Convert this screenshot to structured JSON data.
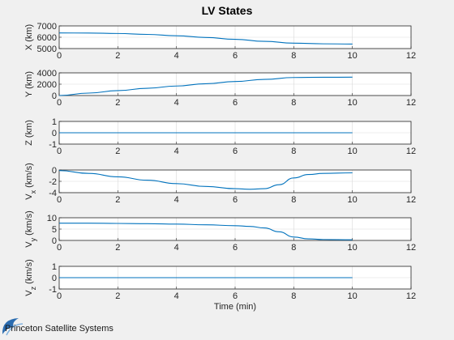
{
  "figure": {
    "title": "LV States",
    "footer": "Princeton Satellite Systems",
    "line_color": "#0072bd",
    "grid_color": "#d9d9d9",
    "background": "#f0f0f0",
    "axes_bg": "#ffffff"
  },
  "chart_data": [
    {
      "type": "line",
      "ylabel": "X (km)",
      "xlim": [
        0,
        12
      ],
      "ylim": [
        5000,
        7000
      ],
      "xticks": [
        "0",
        "2",
        "4",
        "6",
        "8",
        "10",
        "12"
      ],
      "yticks": [
        "5000",
        "6000",
        "7000"
      ],
      "xlabel": "",
      "grid": true,
      "series": [
        {
          "x": [
            0,
            1,
            2,
            3,
            4,
            5,
            6,
            7,
            8,
            9,
            10
          ],
          "y": [
            6380,
            6370,
            6330,
            6250,
            6130,
            5980,
            5820,
            5640,
            5480,
            5420,
            5400
          ]
        }
      ]
    },
    {
      "type": "line",
      "ylabel": "Y (km)",
      "xlim": [
        0,
        12
      ],
      "ylim": [
        0,
        4000
      ],
      "xticks": [
        "0",
        "2",
        "4",
        "6",
        "8",
        "10",
        "12"
      ],
      "yticks": [
        "0",
        "2000",
        "4000"
      ],
      "xlabel": "",
      "grid": true,
      "series": [
        {
          "x": [
            0,
            1,
            2,
            3,
            4,
            5,
            6,
            7,
            8,
            9,
            10
          ],
          "y": [
            0,
            430,
            860,
            1280,
            1680,
            2080,
            2470,
            2850,
            3180,
            3220,
            3240
          ]
        }
      ]
    },
    {
      "type": "line",
      "ylabel": "Z (km)",
      "xlim": [
        0,
        12
      ],
      "ylim": [
        -1,
        1
      ],
      "xticks": [
        "0",
        "2",
        "4",
        "6",
        "8",
        "10",
        "12"
      ],
      "yticks": [
        "-1",
        "0",
        "1"
      ],
      "xlabel": "",
      "grid": true,
      "series": [
        {
          "x": [
            0,
            10
          ],
          "y": [
            0,
            0
          ]
        }
      ]
    },
    {
      "type": "line",
      "ylabel": "V_x (km/s)",
      "xlim": [
        0,
        12
      ],
      "ylim": [
        -4,
        0
      ],
      "xticks": [
        "0",
        "2",
        "4",
        "6",
        "8",
        "10",
        "12"
      ],
      "yticks": [
        "-4",
        "-2",
        "0"
      ],
      "xlabel": "",
      "grid": true,
      "series": [
        {
          "x": [
            0,
            1,
            2,
            3,
            4,
            5,
            6,
            6.5,
            7,
            7.5,
            8,
            8.5,
            9,
            10
          ],
          "y": [
            -0.1,
            -0.6,
            -1.2,
            -1.8,
            -2.4,
            -2.9,
            -3.3,
            -3.4,
            -3.3,
            -2.6,
            -1.4,
            -0.8,
            -0.6,
            -0.5
          ]
        }
      ]
    },
    {
      "type": "line",
      "ylabel": "V_y (km/s)",
      "xlim": [
        0,
        12
      ],
      "ylim": [
        0,
        10
      ],
      "xticks": [
        "0",
        "2",
        "4",
        "6",
        "8",
        "10",
        "12"
      ],
      "yticks": [
        "0",
        "5",
        "10"
      ],
      "xlabel": "",
      "grid": true,
      "series": [
        {
          "x": [
            0,
            1,
            2,
            3,
            4,
            5,
            6,
            6.5,
            7,
            7.5,
            8,
            8.5,
            9,
            10
          ],
          "y": [
            7.6,
            7.6,
            7.5,
            7.4,
            7.2,
            6.9,
            6.5,
            6.2,
            5.5,
            3.8,
            1.5,
            0.7,
            0.4,
            0.3
          ]
        }
      ]
    },
    {
      "type": "line",
      "ylabel": "V_z (km/s)",
      "xlim": [
        0,
        12
      ],
      "ylim": [
        -1,
        1
      ],
      "xticks": [
        "0",
        "2",
        "4",
        "6",
        "8",
        "10",
        "12"
      ],
      "yticks": [
        "-1",
        "0",
        "1"
      ],
      "xlabel": "Time (min)",
      "grid": true,
      "series": [
        {
          "x": [
            0,
            10
          ],
          "y": [
            0,
            0
          ]
        }
      ]
    }
  ]
}
